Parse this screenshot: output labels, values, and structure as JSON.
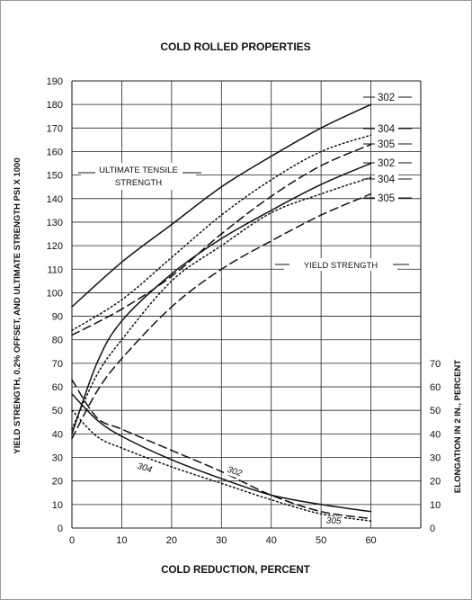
{
  "chart_data": {
    "type": "line",
    "title": "COLD ROLLED PROPERTIES",
    "xlabel": "COLD REDUCTION, PERCENT",
    "ylabel_left": "YIELD STRENGTH, 0.2% OFFSET, AND ULTIMATE STRENGTH PSI X 1000",
    "ylabel_right": "ELONGATION IN 2 IN., PERCENT",
    "xlim": [
      0,
      70
    ],
    "ylim_left": [
      0,
      190
    ],
    "ylim_right": [
      0,
      70
    ],
    "x_ticks": [
      "0",
      "10",
      "20",
      "30",
      "40",
      "50",
      "60"
    ],
    "y_left_ticks": [
      "0",
      "10",
      "20",
      "30",
      "40",
      "50",
      "60",
      "70",
      "80",
      "90",
      "100",
      "110",
      "120",
      "130",
      "140",
      "150",
      "160",
      "170",
      "180",
      "190"
    ],
    "y_right_ticks": [
      "0",
      "10",
      "20",
      "30",
      "40",
      "50",
      "60",
      "70"
    ],
    "grid": true,
    "annotations": {
      "uts": "ULTIMATE TENSILE STRENGTH",
      "uts_line1": "ULTIMATE TENSILE",
      "uts_line2": "STRENGTH",
      "ys": "YIELD STRENGTH"
    },
    "series": [
      {
        "name": "302",
        "group": "ultimate_tensile",
        "style": "solid",
        "x": [
          0,
          10,
          20,
          30,
          40,
          50,
          60
        ],
        "y": [
          94,
          113,
          129,
          145,
          158,
          170,
          180
        ]
      },
      {
        "name": "304",
        "group": "ultimate_tensile",
        "style": "dotted",
        "x": [
          0,
          10,
          20,
          30,
          40,
          50,
          60
        ],
        "y": [
          84,
          97,
          115,
          133,
          148,
          160,
          167
        ]
      },
      {
        "name": "305",
        "group": "ultimate_tensile",
        "style": "dashed",
        "x": [
          0,
          10,
          20,
          30,
          40,
          50,
          60
        ],
        "y": [
          82,
          93,
          107,
          125,
          141,
          154,
          163
        ]
      },
      {
        "name": "302",
        "group": "yield",
        "style": "solid",
        "x": [
          0,
          5,
          10,
          20,
          30,
          40,
          50,
          60
        ],
        "y": [
          40,
          70,
          88,
          108,
          123,
          135,
          146,
          155
        ]
      },
      {
        "name": "304",
        "group": "yield",
        "style": "dotted",
        "x": [
          0,
          5,
          10,
          20,
          30,
          40,
          50,
          60
        ],
        "y": [
          42,
          65,
          80,
          105,
          120,
          134,
          142,
          149
        ]
      },
      {
        "name": "305",
        "group": "yield",
        "style": "dashed",
        "x": [
          0,
          5,
          10,
          20,
          30,
          40,
          50,
          60
        ],
        "y": [
          38,
          58,
          72,
          94,
          110,
          122,
          133,
          142
        ]
      },
      {
        "name": "302",
        "group": "elongation",
        "style": "dashed",
        "axis": "right",
        "x": [
          0,
          5,
          10,
          20,
          30,
          40,
          50,
          60
        ],
        "y": [
          63,
          47,
          42,
          33,
          24,
          14,
          7,
          4
        ]
      },
      {
        "name": "304",
        "group": "elongation",
        "style": "dotted",
        "axis": "right",
        "x": [
          0,
          5,
          10,
          20,
          30,
          40,
          50,
          60
        ],
        "y": [
          50,
          39,
          34,
          26,
          19,
          12,
          6,
          3
        ]
      },
      {
        "name": "305",
        "group": "elongation",
        "style": "solid",
        "axis": "right",
        "x": [
          0,
          5,
          10,
          20,
          30,
          40,
          50,
          60
        ],
        "y": [
          57,
          46,
          39,
          29,
          21,
          14,
          10,
          7
        ]
      }
    ]
  }
}
